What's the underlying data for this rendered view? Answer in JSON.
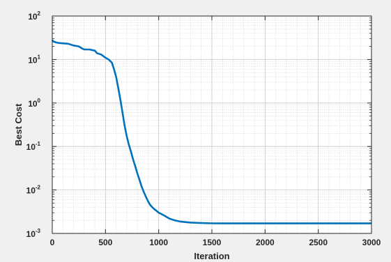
{
  "chart_data": {
    "type": "line",
    "xlabel": "Iteration",
    "ylabel": "Best Cost",
    "xlim": [
      0,
      3000
    ],
    "ylim": [
      0.001,
      100
    ],
    "y_scale": "log",
    "grid": true,
    "minor_grid": true,
    "x_ticks": [
      0,
      500,
      1000,
      1500,
      2000,
      2500,
      3000
    ],
    "y_ticks": [
      {
        "value": 0.001,
        "base": "10",
        "exp": "-3"
      },
      {
        "value": 0.01,
        "base": "10",
        "exp": "-2"
      },
      {
        "value": 0.1,
        "base": "10",
        "exp": "-1"
      },
      {
        "value": 1,
        "base": "10",
        "exp": "0"
      },
      {
        "value": 10,
        "base": "10",
        "exp": "1"
      },
      {
        "value": 100,
        "base": "10",
        "exp": "2"
      }
    ],
    "line_color": "#0072bd",
    "series": [
      {
        "x": [
          0,
          10,
          30,
          60,
          100,
          150,
          200,
          250,
          280,
          300,
          350,
          400,
          420,
          460,
          500,
          530,
          560,
          580,
          600,
          620,
          640,
          660,
          680,
          700,
          720,
          740,
          760,
          780,
          800,
          820,
          840,
          860,
          880,
          900,
          920,
          940,
          960,
          980,
          1000,
          1050,
          1100,
          1150,
          1200,
          1300,
          1400,
          1500,
          1600,
          1800,
          2000,
          2500,
          3000
        ],
        "y": [
          28,
          26,
          25,
          24,
          23.5,
          23,
          21,
          20,
          18,
          17,
          17,
          16,
          14,
          13,
          11,
          10,
          8.5,
          6,
          4,
          2.2,
          1.2,
          0.6,
          0.3,
          0.17,
          0.11,
          0.075,
          0.05,
          0.035,
          0.024,
          0.017,
          0.012,
          0.009,
          0.007,
          0.0055,
          0.0045,
          0.004,
          0.0036,
          0.0033,
          0.003,
          0.0026,
          0.0022,
          0.002,
          0.00188,
          0.00178,
          0.00173,
          0.00171,
          0.0017,
          0.0017,
          0.0017,
          0.0017,
          0.0017
        ]
      }
    ]
  }
}
